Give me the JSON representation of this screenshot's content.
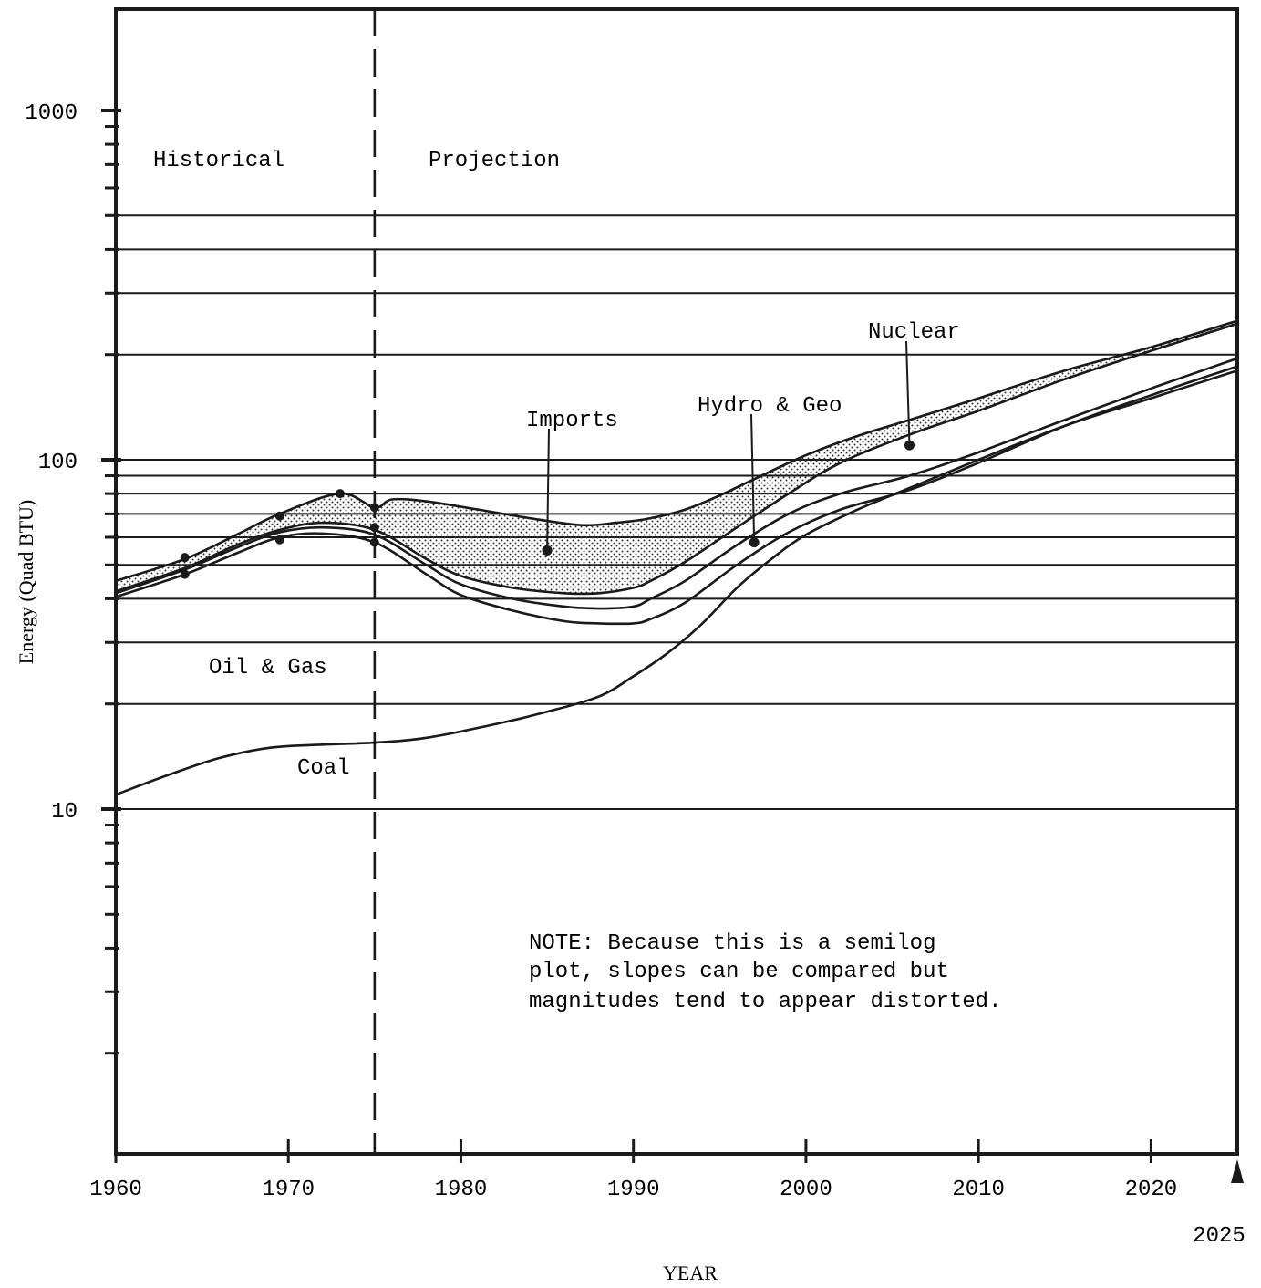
{
  "chart_data": {
    "type": "line",
    "title": "",
    "xlabel": "YEAR",
    "ylabel": "Energy (Quad BTU)",
    "y_scale": "log",
    "xlim": [
      1960,
      2025
    ],
    "ylim": [
      1.5,
      2000
    ],
    "x_ticks": [
      1960,
      1970,
      1980,
      1990,
      2000,
      2010,
      2020
    ],
    "x_tick_labels": [
      "1960",
      "1970",
      "1980",
      "1990",
      "2000",
      "2010",
      "2020"
    ],
    "x_end_marker": {
      "x": 2025,
      "label": "2025"
    },
    "y_labeled_ticks": [
      10,
      100,
      1000
    ],
    "y_tick_labels": [
      "10",
      "100",
      "1000"
    ],
    "y_minor_ticks": [
      2,
      3,
      4,
      5,
      6,
      7,
      8,
      9,
      20,
      30,
      40,
      50,
      60,
      70,
      80,
      90,
      200,
      300,
      400,
      500,
      600,
      700,
      800,
      900
    ],
    "gridlines_y": [
      10,
      20,
      30,
      40,
      50,
      60,
      70,
      80,
      90,
      100,
      200,
      300,
      400,
      500
    ],
    "divider_year": 1975,
    "region_labels": {
      "historical": "Historical",
      "projection": "Projection"
    },
    "note_lines": [
      "NOTE: Because this is a semilog",
      "plot, slopes can be compared but",
      "magnitudes tend to appear distorted."
    ],
    "series": [
      {
        "name": "Coal",
        "x": [
          1960,
          1963,
          1966,
          1969,
          1972,
          1975,
          1978,
          1982,
          1985,
          1988,
          1990,
          1992,
          1994,
          1996,
          1998,
          2000,
          2003,
          2006,
          2010,
          2015,
          2020,
          2025
        ],
        "y": [
          11,
          12.5,
          14,
          15,
          15.3,
          15.5,
          16,
          17.5,
          19,
          21,
          24,
          28,
          34,
          43,
          52,
          61,
          72,
          83,
          100,
          125,
          150,
          180
        ]
      },
      {
        "name": "Oil & Gas",
        "x": [
          1960,
          1964,
          1967,
          1969.5,
          1972,
          1975,
          1978,
          1980,
          1983,
          1986,
          1988,
          1990,
          1991,
          1993,
          1996,
          1999,
          2002,
          2006,
          2010,
          2015,
          2020,
          2025
        ],
        "y": [
          40.5,
          47,
          54,
          60,
          61.5,
          58,
          47,
          41,
          37,
          34.5,
          34,
          34,
          35,
          39,
          50,
          62,
          72,
          82,
          98,
          125,
          153,
          185
        ]
      },
      {
        "name": "Hydro & Geo",
        "x": [
          1960,
          1964,
          1967,
          1969.5,
          1972,
          1975,
          1978,
          1980,
          1983,
          1986,
          1988,
          1990,
          1991,
          1993,
          1996,
          1999,
          2002,
          2006,
          2010,
          2015,
          2020,
          2025
        ],
        "y": [
          41.5,
          48.5,
          56,
          62,
          64,
          61,
          50,
          44,
          40,
          38,
          37.5,
          38,
          40,
          45,
          57,
          70,
          80,
          90,
          105,
          130,
          160,
          195
        ]
      },
      {
        "name": "Nuclear",
        "x": [
          1960,
          1964,
          1967,
          1969.5,
          1972,
          1975,
          1978,
          1980,
          1983,
          1986,
          1988,
          1990,
          1991,
          1993,
          1996,
          1999,
          2002,
          2006,
          2010,
          2015,
          2020,
          2025
        ],
        "y": [
          42,
          49,
          57,
          63,
          66,
          63,
          52,
          46.5,
          43,
          41.5,
          41.5,
          43,
          45,
          51,
          64,
          80,
          98,
          118,
          138,
          170,
          205,
          245
        ]
      },
      {
        "name": "Imports",
        "x": [
          1960,
          1964,
          1967,
          1969.5,
          1973,
          1975,
          1976,
          1978,
          1981,
          1984,
          1987,
          1989,
          1991,
          1993,
          1995,
          1997,
          2000,
          2003,
          2006,
          2010,
          2015,
          2020,
          2025
        ],
        "y": [
          45,
          52,
          61,
          70,
          80,
          73,
          77,
          76,
          72,
          68,
          65,
          66,
          68,
          72,
          79,
          88,
          103,
          117,
          130,
          150,
          180,
          210,
          250
        ]
      }
    ],
    "historical_points": [
      {
        "x": 1964,
        "y": 47
      },
      {
        "x": 1964,
        "y": 52.5
      },
      {
        "x": 1969.5,
        "y": 59
      },
      {
        "x": 1969.5,
        "y": 69
      },
      {
        "x": 1973,
        "y": 80
      },
      {
        "x": 1975,
        "y": 58
      },
      {
        "x": 1975,
        "y": 64
      },
      {
        "x": 1975,
        "y": 73
      }
    ],
    "annotations": [
      {
        "text": "Imports",
        "pointer": {
          "x": 1985,
          "y": 55
        }
      },
      {
        "text": "Hydro & Geo",
        "pointer": {
          "x": 1997,
          "y": 58
        }
      },
      {
        "text": "Nuclear",
        "pointer": {
          "x": 2006,
          "y": 110
        }
      },
      {
        "text": "Oil & Gas"
      },
      {
        "text": "Coal"
      }
    ]
  }
}
